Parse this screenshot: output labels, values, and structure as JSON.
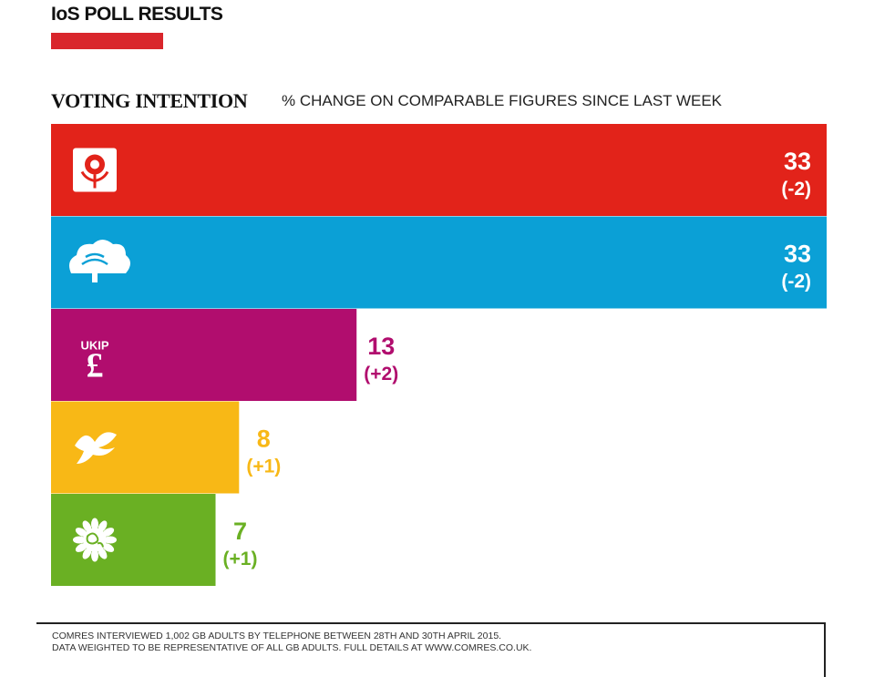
{
  "header": {
    "title": "IoS POLL RESULTS",
    "accent_color": "#d9262c"
  },
  "subheader": {
    "main": "VOTING INTENTION",
    "sub": "% CHANGE ON COMPARABLE FIGURES SINCE LAST WEEK"
  },
  "chart_data": {
    "type": "bar",
    "orientation": "horizontal",
    "title": "VOTING INTENTION",
    "subtitle": "% CHANGE ON COMPARABLE FIGURES SINCE LAST WEEK",
    "xlim": [
      0,
      33
    ],
    "grid": false,
    "legend": "none",
    "bars": [
      {
        "icon": "rose-icon",
        "value": 33,
        "value_label": "33",
        "change_label": "(-2)",
        "color": "#e2231a",
        "label_color": "#ffffff"
      },
      {
        "icon": "tree-icon",
        "value": 33,
        "value_label": "33",
        "change_label": "(-2)",
        "color": "#0ba0d6",
        "label_color": "#ffffff"
      },
      {
        "icon": "pound-sign-icon",
        "value": 13,
        "value_label": "13",
        "change_label": "(+2)",
        "color": "#b10d6e",
        "label_color": "#b10d6e",
        "icon_text": "UKIP"
      },
      {
        "icon": "bird-icon",
        "value": 8,
        "value_label": "8",
        "change_label": "(+1)",
        "color": "#f8b816",
        "label_color": "#f8b816"
      },
      {
        "icon": "sunflower-globe-icon",
        "value": 7,
        "value_label": "7",
        "change_label": "(+1)",
        "color": "#6ab023",
        "label_color": "#6ab023"
      }
    ]
  },
  "footer": {
    "line1": "COMRES INTERVIEWED 1,002 GB ADULTS BY TELEPHONE BETWEEN 28TH AND 30TH APRIL 2015.",
    "line2": "DATA WEIGHTED TO BE REPRESENTATIVE OF ALL GB ADULTS. FULL DETAILS AT WWW.COMRES.CO.UK."
  }
}
